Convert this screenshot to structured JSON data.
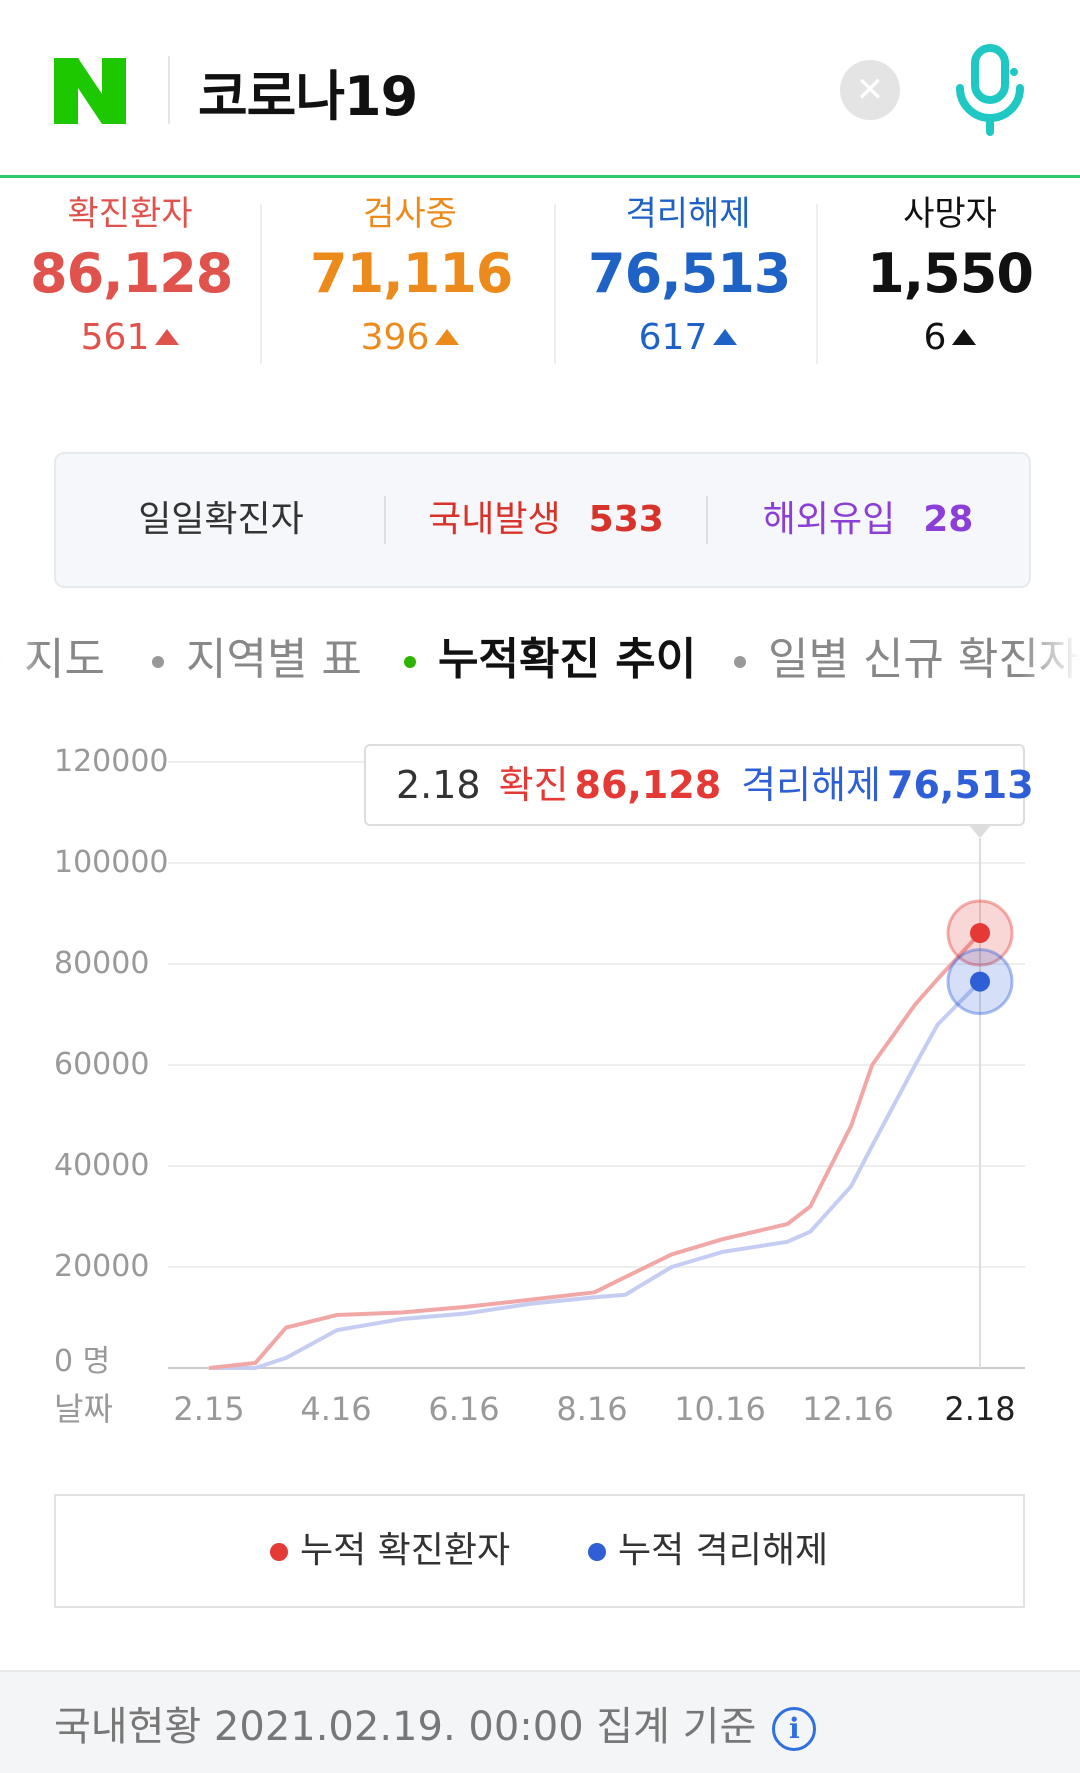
{
  "header": {
    "logo_letter": "N",
    "query": "코로나19",
    "clear_icon": "close-icon",
    "mic_icon": "microphone-icon"
  },
  "stats": [
    {
      "label": "확진환자",
      "value": "86,128",
      "change": "561",
      "color": "#e0534d"
    },
    {
      "label": "검사중",
      "value": "71,116",
      "change": "396",
      "color": "#ec8a1c"
    },
    {
      "label": "격리해제",
      "value": "76,513",
      "change": "617",
      "color": "#1f62c5"
    },
    {
      "label": "사망자",
      "value": "1,550",
      "change": "6",
      "color": "#111111"
    }
  ],
  "daily": {
    "label": "일일확진자",
    "domestic_label": "국내발생",
    "domestic_value": "533",
    "overseas_label": "해외유입",
    "overseas_value": "28"
  },
  "tabs": [
    "지도",
    "지역별 표",
    "누적확진 추이",
    "일별 신규 확진자"
  ],
  "active_tab": 2,
  "chart_data": {
    "type": "line",
    "x": [
      "2.15",
      "3.1",
      "3.15",
      "4.16",
      "5.15",
      "6.16",
      "7.15",
      "8.16",
      "8.25",
      "9.15",
      "10.16",
      "11.15",
      "11.25",
      "12.16",
      "12.25",
      "1.15",
      "1.25",
      "2.18"
    ],
    "series": [
      {
        "name": "누적 확진환자",
        "values": [
          0,
          1000,
          8000,
          10500,
          11000,
          12100,
          13500,
          15000,
          18000,
          22500,
          25500,
          28500,
          32000,
          48000,
          60000,
          72000,
          77000,
          86128
        ]
      },
      {
        "name": "누적 격리해제",
        "values": [
          0,
          0,
          2000,
          7500,
          9700,
          10800,
          12700,
          14000,
          14500,
          20000,
          23000,
          25000,
          27000,
          36000,
          44000,
          60000,
          68000,
          76513
        ]
      }
    ],
    "ylim": [
      0,
      120000
    ],
    "yticks": [
      "120000",
      "100000",
      "80000",
      "60000",
      "40000",
      "20000",
      "0"
    ],
    "y_unit": "명",
    "xticks": [
      "2.15",
      "4.16",
      "6.16",
      "8.16",
      "10.16",
      "12.16",
      "2.18"
    ],
    "xlabel": "날짜",
    "colors": {
      "confirmed": "#f2a7a7",
      "released": "#c5cdf3",
      "confirmed_dot": "#e53935",
      "released_dot": "#2f5fd6"
    },
    "tooltip": {
      "date": "2.18",
      "confirmed_label": "확진",
      "confirmed_value": "86,128",
      "released_label": "격리해제",
      "released_value": "76,513"
    }
  },
  "legend": {
    "confirmed": "누적 확진환자",
    "released": "누적 격리해제"
  },
  "footer": {
    "text": "국내현황 2021.02.19. 00:00 집계 기준",
    "info_icon": "info-icon"
  }
}
